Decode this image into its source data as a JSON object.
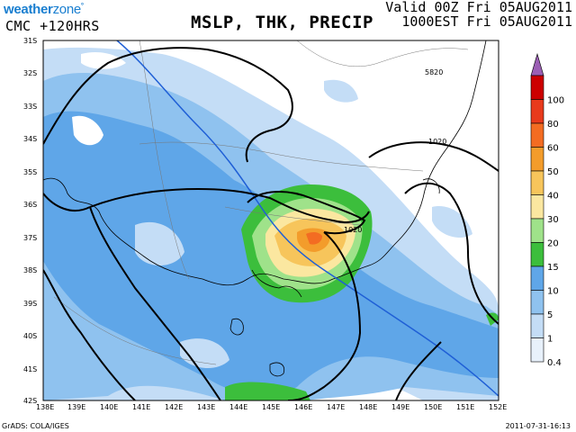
{
  "header": {
    "logo_weather": "weather",
    "logo_zone": "zone",
    "model": "CMC  +120HRS",
    "title": "MSLP, THK, PRECIP",
    "valid_utc": "Valid 00Z Fri 05AUG2011",
    "valid_local": "1000EST Fri 05AUG2011"
  },
  "map": {
    "lat_labels": [
      "31S",
      "32S",
      "33S",
      "34S",
      "35S",
      "36S",
      "37S",
      "38S",
      "39S",
      "40S",
      "41S",
      "42S"
    ],
    "lon_labels": [
      "138E",
      "139E",
      "140E",
      "141E",
      "142E",
      "143E",
      "144E",
      "145E",
      "146E",
      "147E",
      "148E",
      "149E",
      "150E",
      "151E",
      "152E"
    ],
    "contour_labels": [
      "5820",
      "1020",
      "1020"
    ]
  },
  "colorbar": {
    "labels": [
      "100",
      "80",
      "60",
      "50",
      "40",
      "30",
      "20",
      "15",
      "10",
      "5",
      "1",
      "0.4"
    ],
    "colors": [
      "#cc0000",
      "#e83a1c",
      "#f36c22",
      "#f39c2b",
      "#f7c55b",
      "#fbe7a0",
      "#9fe28a",
      "#3cbe3c",
      "#5fa6e8",
      "#8fc2ef",
      "#c4ddf6",
      "#e8f1fb"
    ],
    "top_color": "#9b5fb4"
  },
  "footer": {
    "credit": "GrADS: COLA/IGES",
    "timestamp": "2011-07-31-16:13"
  }
}
